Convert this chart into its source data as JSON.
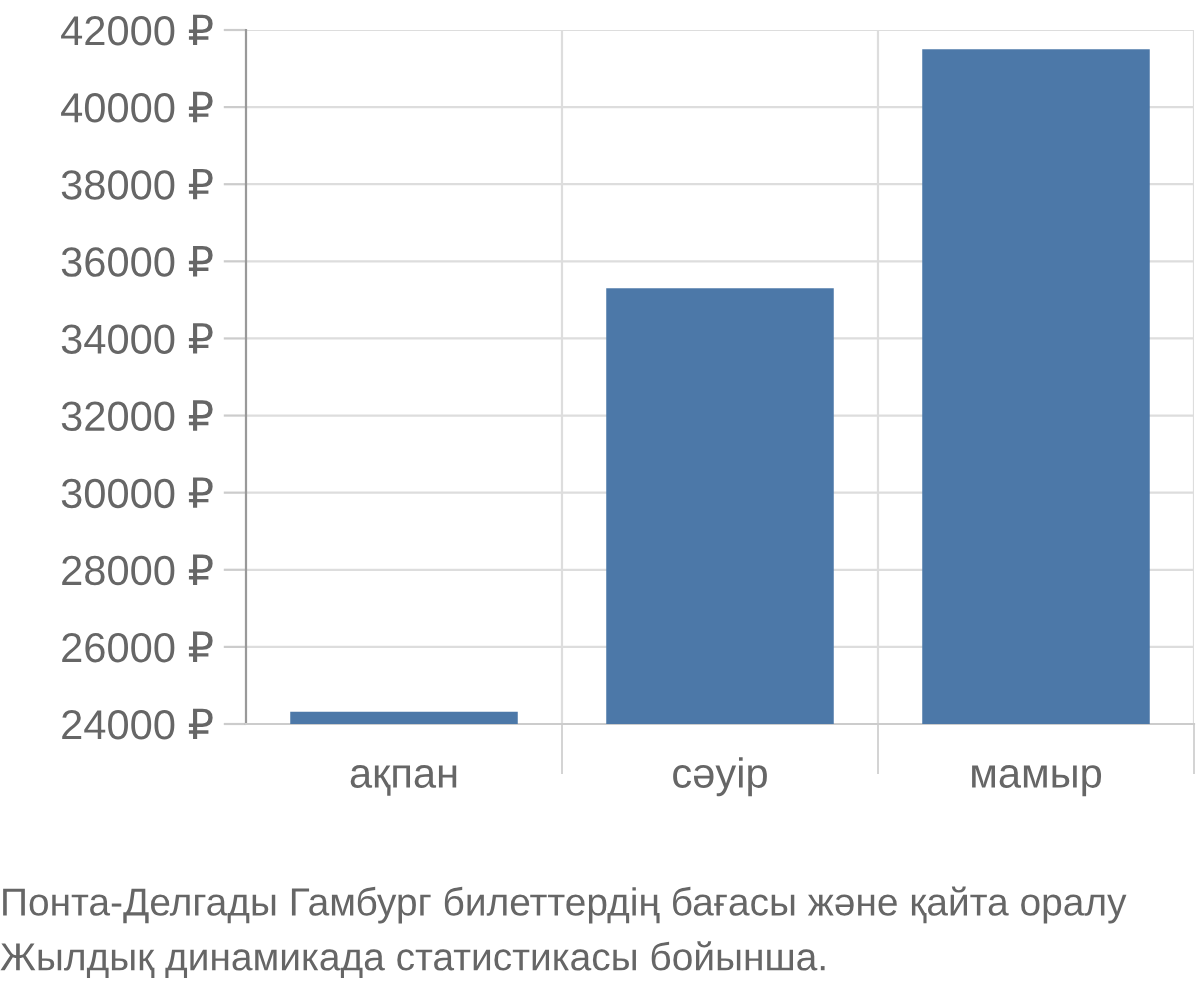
{
  "chart_data": {
    "type": "bar",
    "categories": [
      "ақпан",
      "сәуір",
      "мамыр"
    ],
    "values": [
      24320,
      35300,
      41500
    ],
    "color": "#4c78a8",
    "ylim": [
      24000,
      42000
    ],
    "yticks": [
      {
        "value": 24000,
        "label": "24000 ₽"
      },
      {
        "value": 26000,
        "label": "26000 ₽"
      },
      {
        "value": 28000,
        "label": "28000 ₽"
      },
      {
        "value": 30000,
        "label": "30000 ₽"
      },
      {
        "value": 32000,
        "label": "32000 ₽"
      },
      {
        "value": 34000,
        "label": "34000 ₽"
      },
      {
        "value": 36000,
        "label": "36000 ₽"
      },
      {
        "value": 38000,
        "label": "38000 ₽"
      },
      {
        "value": 40000,
        "label": "40000 ₽"
      },
      {
        "value": 42000,
        "label": "42000 ₽"
      }
    ],
    "grid": true,
    "annotations": [
      "Понта-Делгады Гамбург билеттердің бағасы және қайта оралу",
      "Жылдық динамикада статистикасы бойынша."
    ]
  }
}
